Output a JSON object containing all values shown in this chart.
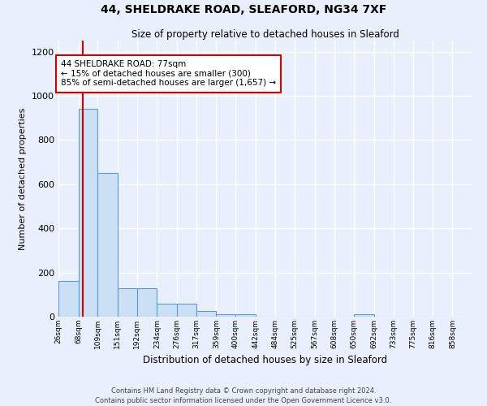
{
  "title": "44, SHELDRAKE ROAD, SLEAFORD, NG34 7XF",
  "subtitle": "Size of property relative to detached houses in Sleaford",
  "xlabel": "Distribution of detached houses by size in Sleaford",
  "ylabel": "Number of detached properties",
  "bar_edges": [
    26,
    68,
    109,
    151,
    192,
    234,
    276,
    317,
    359,
    400,
    442,
    484,
    525,
    567,
    608,
    650,
    692,
    733,
    775,
    816,
    858
  ],
  "bar_heights": [
    160,
    940,
    650,
    130,
    130,
    60,
    60,
    25,
    10,
    10,
    0,
    0,
    0,
    0,
    0,
    10,
    0,
    0,
    0,
    0
  ],
  "bar_color": "#cce0f5",
  "bar_edge_color": "#5b9bd5",
  "background_color": "#eaf0fb",
  "grid_color": "#ffffff",
  "property_sqm": 77,
  "annotation_text": "44 SHELDRAKE ROAD: 77sqm\n← 15% of detached houses are smaller (300)\n85% of semi-detached houses are larger (1,657) →",
  "annotation_box_color": "#ffffff",
  "annotation_box_edge": "#cc0000",
  "vline_color": "#cc0000",
  "footer_line1": "Contains HM Land Registry data © Crown copyright and database right 2024.",
  "footer_line2": "Contains public sector information licensed under the Open Government Licence v3.0.",
  "ylim": [
    0,
    1250
  ],
  "yticks": [
    0,
    200,
    400,
    600,
    800,
    1000,
    1200
  ]
}
